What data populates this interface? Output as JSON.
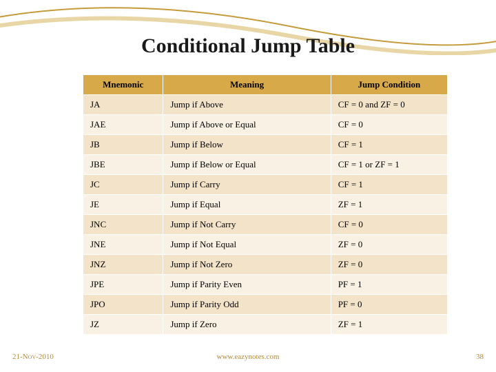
{
  "title": {
    "text": "Conditional Jump Table",
    "fontsize": 30,
    "color": "#1a1a1a"
  },
  "swoosh": {
    "line1_color": "#c59a3a",
    "line2_color": "#e8d6a6",
    "line1_width": 2,
    "line2_width": 6
  },
  "table": {
    "type": "table",
    "header_bg": "#d7a948",
    "row_odd_bg": "#f2e3c9",
    "row_even_bg": "#f9f2e4",
    "border_color": "#ffffff",
    "fontsize": 13,
    "columns": [
      {
        "label": "Mnemonic",
        "align": "center",
        "width_pct": 22
      },
      {
        "label": "Meaning",
        "align": "center",
        "width_pct": 46
      },
      {
        "label": "Jump Condition",
        "align": "center",
        "width_pct": 32
      }
    ],
    "rows": [
      [
        "JA",
        "Jump if Above",
        "CF = 0 and ZF = 0"
      ],
      [
        "JAE",
        "Jump if Above or Equal",
        "CF = 0"
      ],
      [
        "JB",
        "Jump if Below",
        "CF = 1"
      ],
      [
        "JBE",
        "Jump if Below or Equal",
        "CF = 1 or ZF = 1"
      ],
      [
        "JC",
        "Jump if Carry",
        "CF = 1"
      ],
      [
        "JE",
        "Jump if Equal",
        "ZF = 1"
      ],
      [
        "JNC",
        "Jump if Not Carry",
        "CF = 0"
      ],
      [
        "JNE",
        "Jump if Not Equal",
        "ZF = 0"
      ],
      [
        "JNZ",
        "Jump if Not Zero",
        "ZF = 0"
      ],
      [
        "JPE",
        "Jump if Parity Even",
        "PF = 1"
      ],
      [
        "JPO",
        "Jump if Parity Odd",
        "PF = 0"
      ],
      [
        "JZ",
        "Jump if Zero",
        "ZF = 1"
      ]
    ]
  },
  "footer": {
    "date": "21-Nov-2010",
    "url": "www.eazynotes.com",
    "page": "38",
    "color": "#b08a3a",
    "fontsize": 11
  }
}
